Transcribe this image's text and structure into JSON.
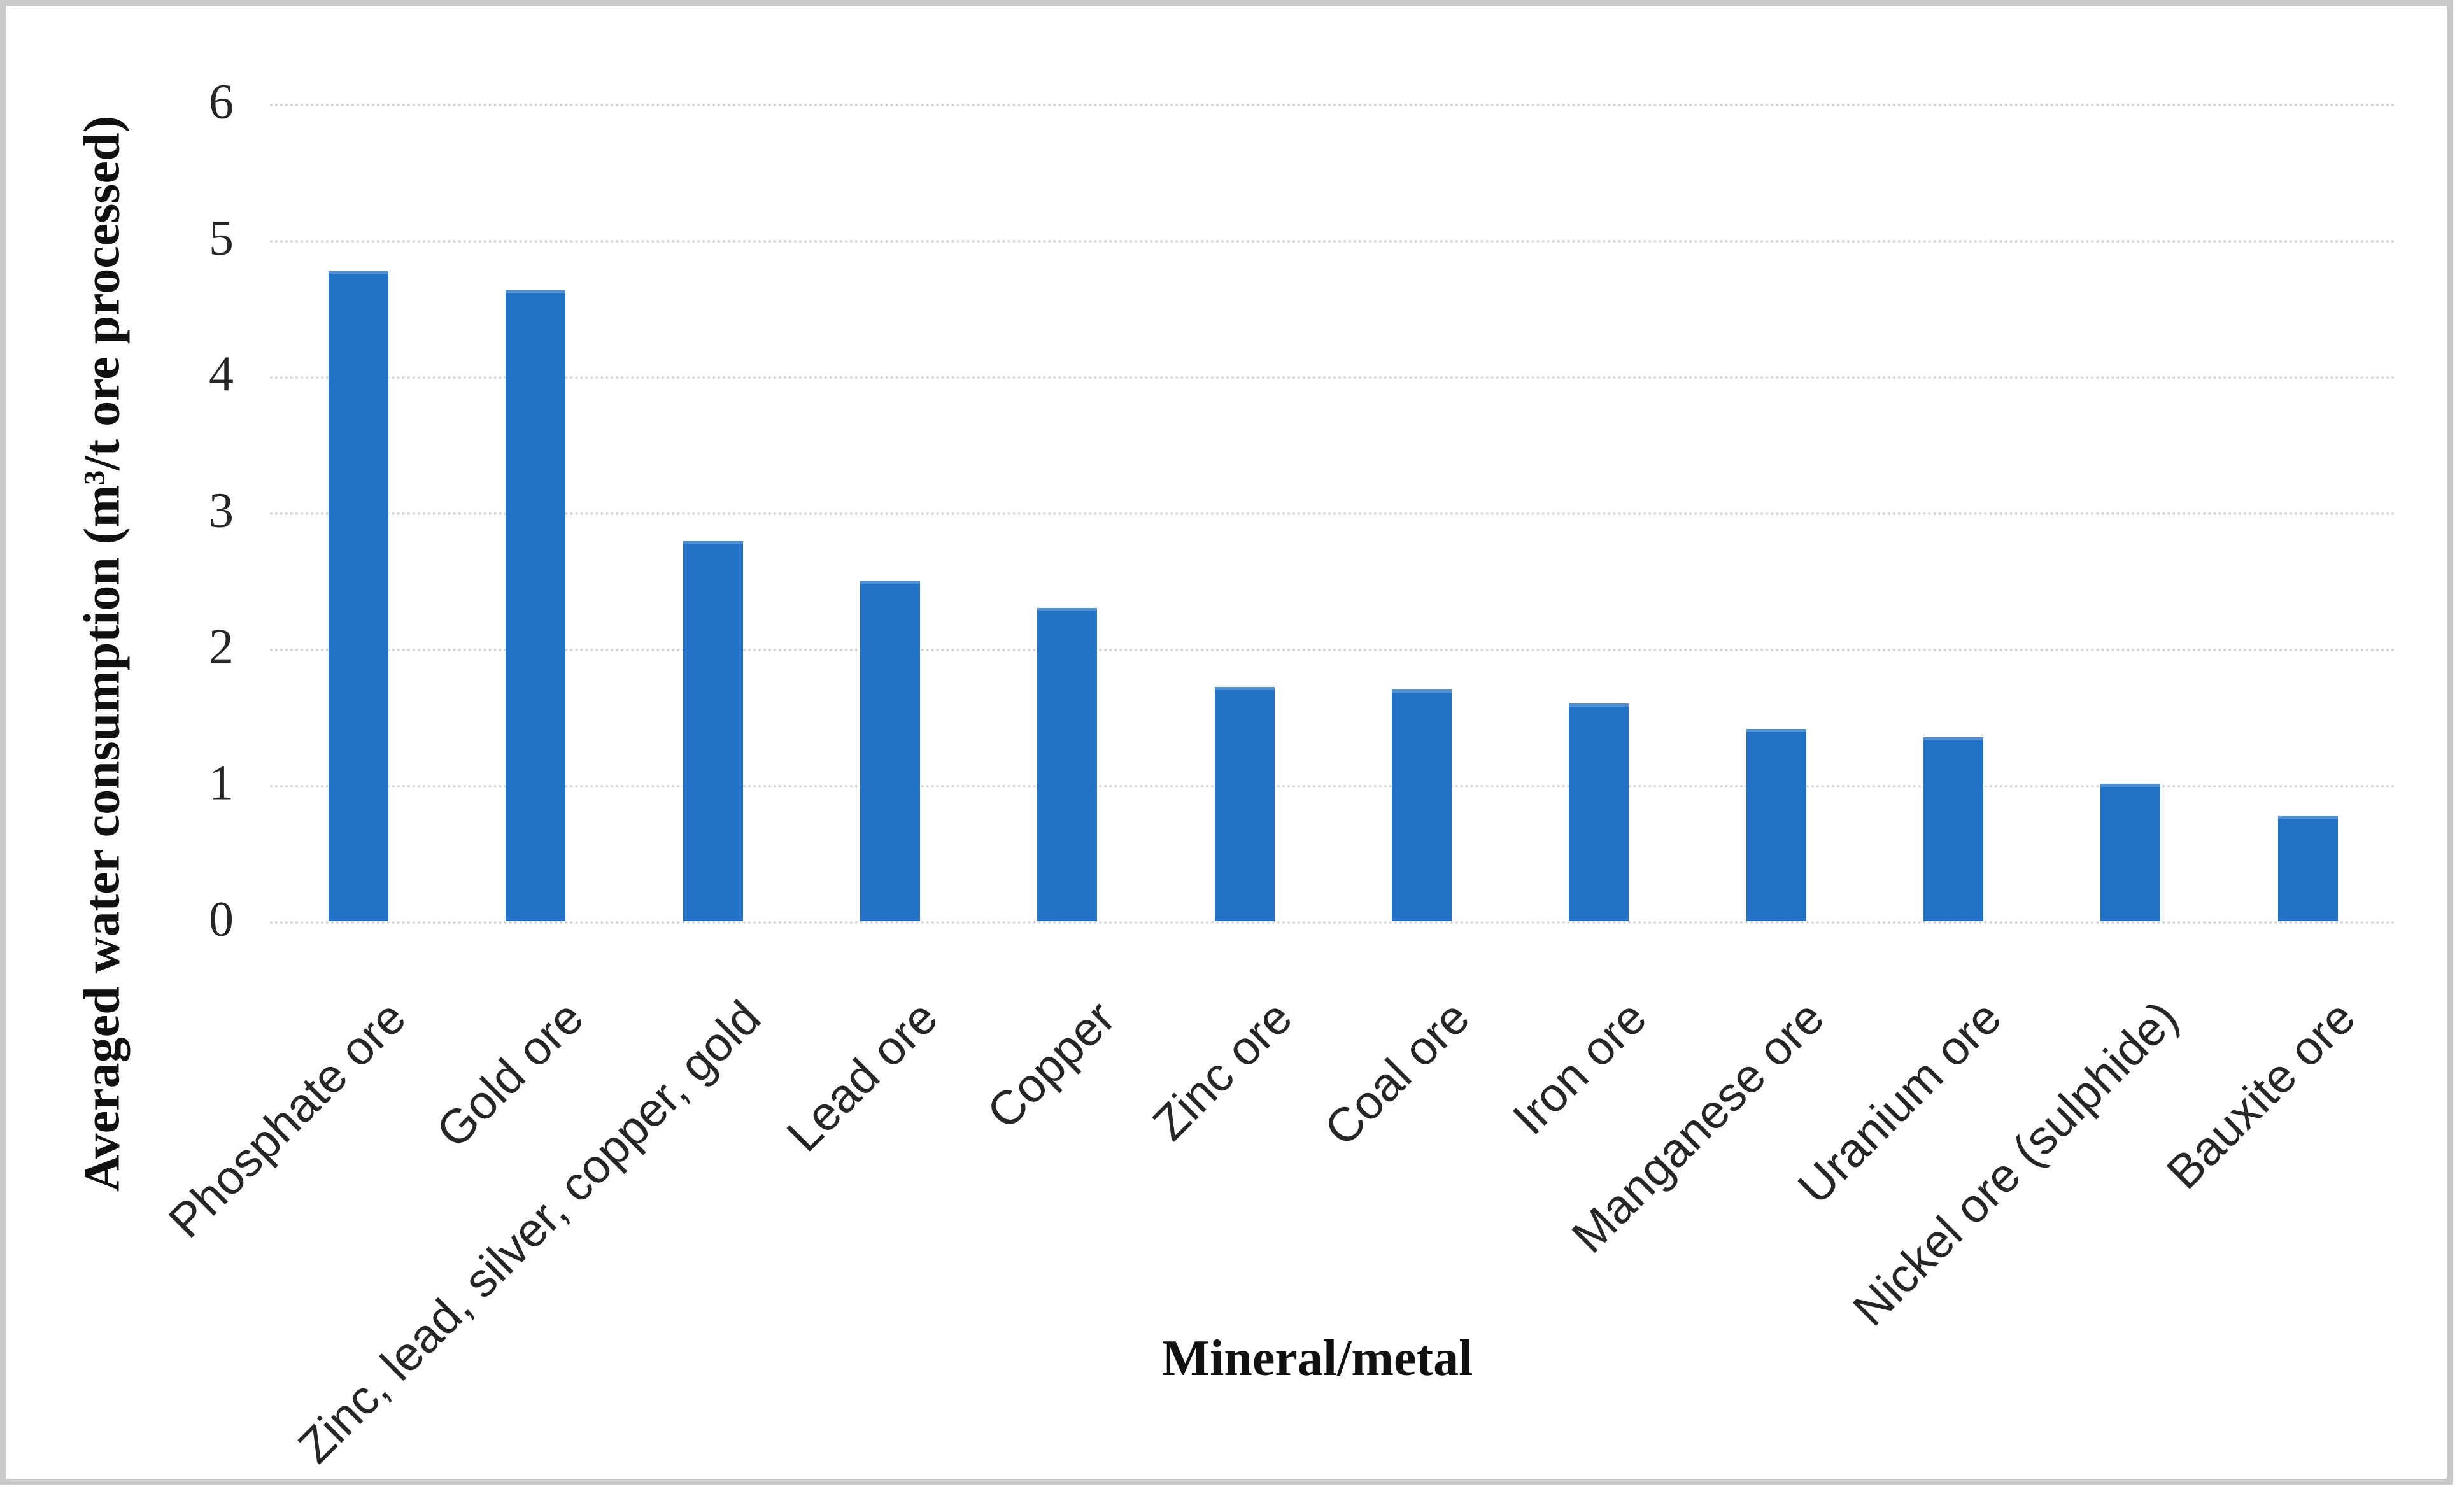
{
  "figure": {
    "border_color": "#c9cacb",
    "background": "#ffffff"
  },
  "chart_data": {
    "type": "bar",
    "title": "",
    "categories": [
      "Phosphate ore",
      "Gold ore",
      "Zinc, lead, silver, copper, gold",
      "Lead ore",
      "Copper",
      "Zinc ore",
      "Coal ore",
      "Iron ore",
      "Manganese ore",
      "Uranium ore",
      "Nickel ore (sulphide)",
      "Bauxite ore"
    ],
    "values": [
      4.77,
      4.63,
      2.79,
      2.5,
      2.3,
      1.72,
      1.7,
      1.6,
      1.41,
      1.35,
      1.01,
      0.77
    ],
    "xlabel": "Mineral/metal",
    "ylabel": "Averaged water consumption (m³/t ore processed)",
    "ylabel_parts": {
      "prefix": "Averaged water consumption (m",
      "sup": "3",
      "suffix": "/t ore processed)"
    },
    "ylim": [
      0,
      6
    ],
    "yticks": [
      0,
      1,
      2,
      3,
      4,
      5,
      6
    ],
    "grid": true,
    "legend_position": "none",
    "bar_color": "#2171c6",
    "gridline_color": "#d4d4d4",
    "tick_color": "#262626",
    "axis_title_color": "#111111"
  }
}
